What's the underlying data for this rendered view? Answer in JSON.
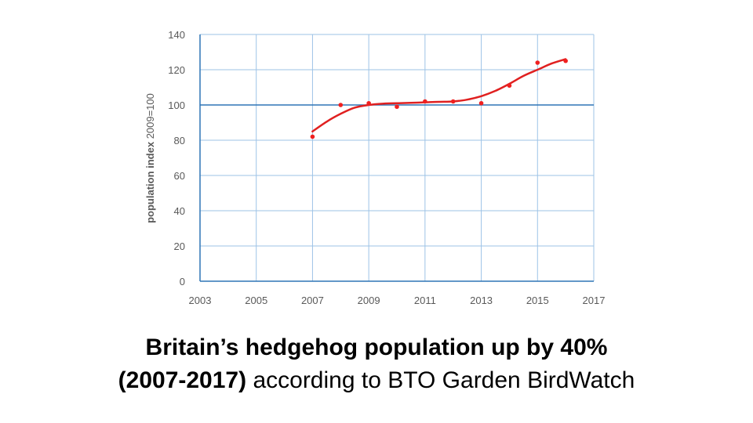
{
  "chart_data": {
    "type": "scatter",
    "ylabel_bold": "population index",
    "ylabel_rest": " 2009=100",
    "xlim": [
      2003,
      2017
    ],
    "ylim": [
      0,
      140
    ],
    "xticks": [
      2003,
      2005,
      2007,
      2009,
      2011,
      2013,
      2015,
      2017
    ],
    "yticks": [
      0,
      20,
      40,
      60,
      80,
      100,
      120,
      140
    ],
    "grid": true,
    "reference_line": 100,
    "series": [
      {
        "x": [
          2007,
          2008,
          2009,
          2010,
          2011,
          2012,
          2013,
          2014,
          2015,
          2016
        ],
        "values": [
          82,
          100,
          101,
          99,
          102,
          102,
          101,
          111,
          124,
          125
        ]
      }
    ],
    "trend": {
      "x": [
        2007,
        2007.5,
        2008,
        2008.5,
        2009,
        2009.5,
        2010,
        2010.5,
        2011,
        2011.5,
        2012,
        2012.5,
        2013,
        2013.5,
        2014,
        2014.5,
        2015,
        2015.5,
        2016
      ],
      "values": [
        85,
        90.5,
        95,
        98.5,
        100,
        100.7,
        101,
        101.2,
        101.5,
        101.8,
        102,
        103,
        105,
        108,
        112,
        116.5,
        120,
        123.5,
        126
      ]
    },
    "colors": {
      "points": "#f02020",
      "trend": "#e02020",
      "grid": "#9dc3e6",
      "axis": "#2e75b6",
      "reference": "#2e75b6"
    }
  },
  "caption": {
    "line1": "Britain’s hedgehog population up by 40%",
    "line2_bold": "(2007-2017)",
    "line2_rest": " according to BTO Garden BirdWatch"
  }
}
